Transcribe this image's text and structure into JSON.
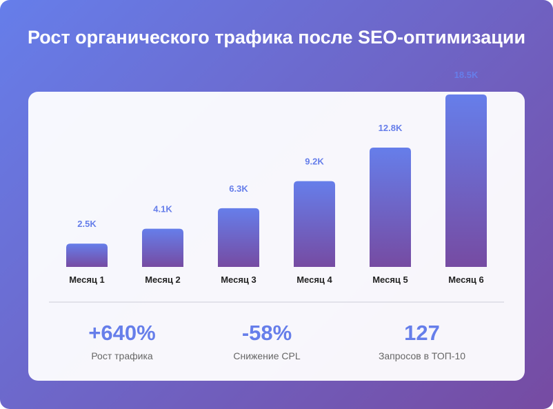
{
  "title": "Рост органического трафика после SEO-оптимизации",
  "colors": {
    "gradient_start": "#667eea",
    "gradient_end": "#764ba2",
    "value_label": "#667eea",
    "axis_label": "#222222",
    "stat_label": "#666666"
  },
  "chart_data": {
    "type": "bar",
    "title": "Рост органического трафика после SEO-оптимизации",
    "categories": [
      "Месяц 1",
      "Месяц 2",
      "Месяц 3",
      "Месяц 4",
      "Месяц 5",
      "Месяц 6"
    ],
    "values": [
      2.5,
      4.1,
      6.3,
      9.2,
      12.8,
      18.5
    ],
    "value_labels": [
      "2.5K",
      "4.1K",
      "6.3K",
      "9.2K",
      "12.8K",
      "18.5K"
    ],
    "xlabel": "",
    "ylabel": "",
    "grid": false,
    "legend": "none"
  },
  "stats": [
    {
      "value": "+640%",
      "label": "Рост трафика"
    },
    {
      "value": "-58%",
      "label": "Снижение CPL"
    },
    {
      "value": "127",
      "label": "Запросов в ТОП-10"
    }
  ]
}
